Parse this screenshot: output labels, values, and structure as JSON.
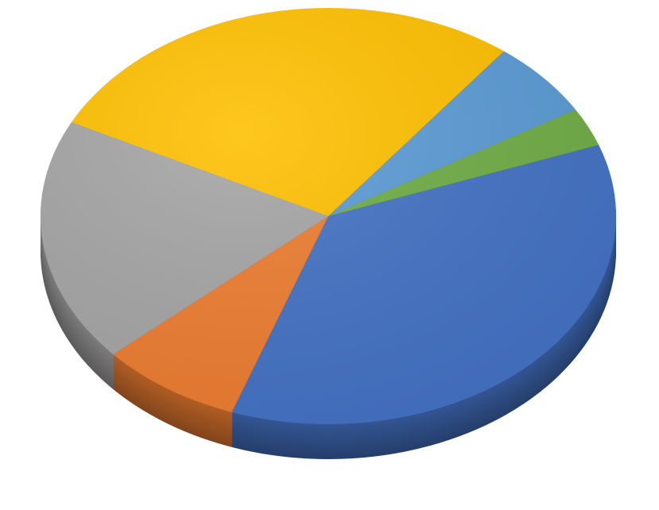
{
  "chart_data": {
    "type": "pie",
    "style": "3d",
    "title": "",
    "legend": "none",
    "data_labels": "none",
    "start_angle_deg": 70,
    "direction": "clockwise",
    "slices": [
      {
        "value": 36,
        "color": "#4472C4"
      },
      {
        "value": 8,
        "color": "#ED7D31"
      },
      {
        "value": 19,
        "color": "#A5A5A5"
      },
      {
        "value": 28,
        "color": "#FFC000"
      },
      {
        "value": 6,
        "color": "#5B9BD5"
      },
      {
        "value": 3,
        "color": "#70AD47"
      }
    ]
  }
}
